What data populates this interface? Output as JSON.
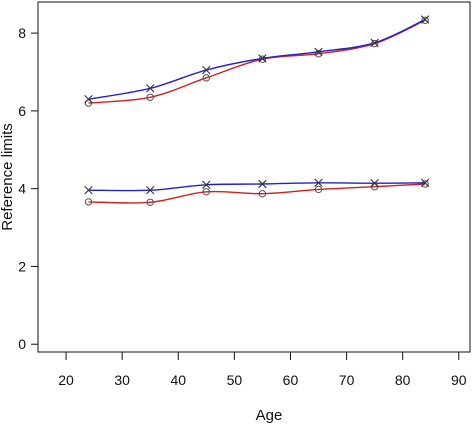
{
  "chart_data": {
    "type": "line",
    "title": "",
    "xlabel": "Age",
    "ylabel": "Reference limits",
    "xlim": [
      15,
      92
    ],
    "ylim": [
      -0.2,
      8.8
    ],
    "xticks": [
      20,
      30,
      40,
      50,
      60,
      70,
      80,
      90
    ],
    "yticks": [
      0,
      2,
      4,
      6,
      8
    ],
    "grid": false,
    "legend": "none",
    "series": [
      {
        "color": "#cc2222",
        "marker": "circle",
        "x": [
          24,
          35,
          45,
          55,
          65,
          75,
          84
        ],
        "y": [
          6.2,
          6.35,
          6.85,
          7.33,
          7.47,
          7.73,
          8.33
        ]
      },
      {
        "color": "#2222cc",
        "marker": "x",
        "x": [
          24,
          35,
          45,
          55,
          65,
          75,
          84
        ],
        "y": [
          6.3,
          6.58,
          7.05,
          7.35,
          7.52,
          7.75,
          8.35
        ]
      },
      {
        "color": "#cc2222",
        "marker": "circle",
        "x": [
          24,
          35,
          45,
          55,
          65,
          75,
          84
        ],
        "y": [
          3.66,
          3.65,
          3.92,
          3.87,
          3.98,
          4.05,
          4.12
        ]
      },
      {
        "color": "#2222cc",
        "marker": "x",
        "x": [
          24,
          35,
          45,
          55,
          65,
          75,
          84
        ],
        "y": [
          3.96,
          3.96,
          4.1,
          4.12,
          4.15,
          4.14,
          4.15
        ]
      }
    ]
  }
}
